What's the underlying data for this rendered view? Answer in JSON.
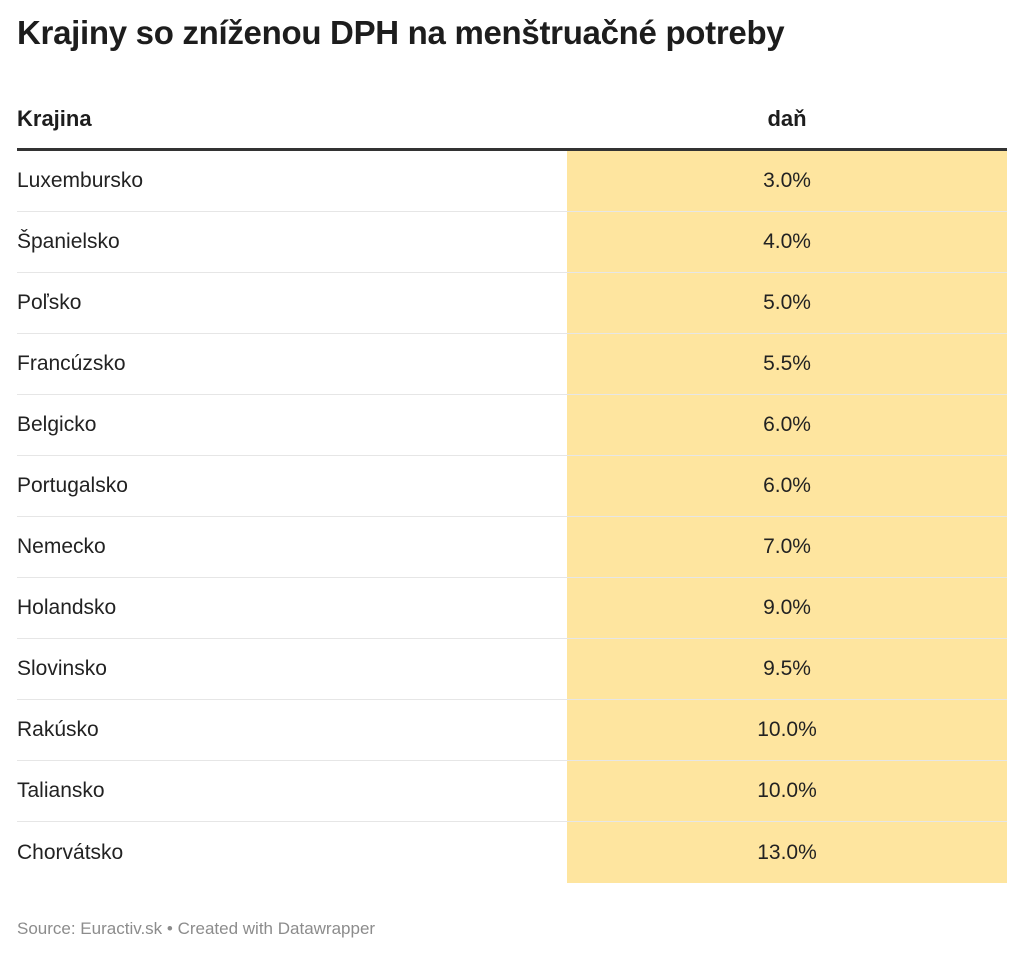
{
  "title": "Krajiny so zníženou DPH na menštruačné potreby",
  "colors": {
    "highlight": "#fee59f",
    "header_rule": "#333333",
    "row_rule": "#e6e6e6",
    "footer_text": "#8c8c8c"
  },
  "footer": "Source: Euractiv.sk • Created with Datawrapper",
  "chart_data": {
    "type": "table",
    "title": "Krajiny so zníženou DPH na menštruačné potreby",
    "columns": [
      "Krajina",
      "daň"
    ],
    "rows": [
      {
        "country": "Luxembursko",
        "tax": "3.0%",
        "value": 3.0
      },
      {
        "country": "Španielsko",
        "tax": "4.0%",
        "value": 4.0
      },
      {
        "country": "Poľsko",
        "tax": "5.0%",
        "value": 5.0
      },
      {
        "country": "Francúzsko",
        "tax": "5.5%",
        "value": 5.5
      },
      {
        "country": "Belgicko",
        "tax": "6.0%",
        "value": 6.0
      },
      {
        "country": "Portugalsko",
        "tax": "6.0%",
        "value": 6.0
      },
      {
        "country": "Nemecko",
        "tax": "7.0%",
        "value": 7.0
      },
      {
        "country": "Holandsko",
        "tax": "9.0%",
        "value": 9.0
      },
      {
        "country": "Slovinsko",
        "tax": "9.5%",
        "value": 9.5
      },
      {
        "country": "Rakúsko",
        "tax": "10.0%",
        "value": 10.0
      },
      {
        "country": "Taliansko",
        "tax": "10.0%",
        "value": 10.0
      },
      {
        "country": "Chorvátsko",
        "tax": "13.0%",
        "value": 13.0
      }
    ]
  }
}
